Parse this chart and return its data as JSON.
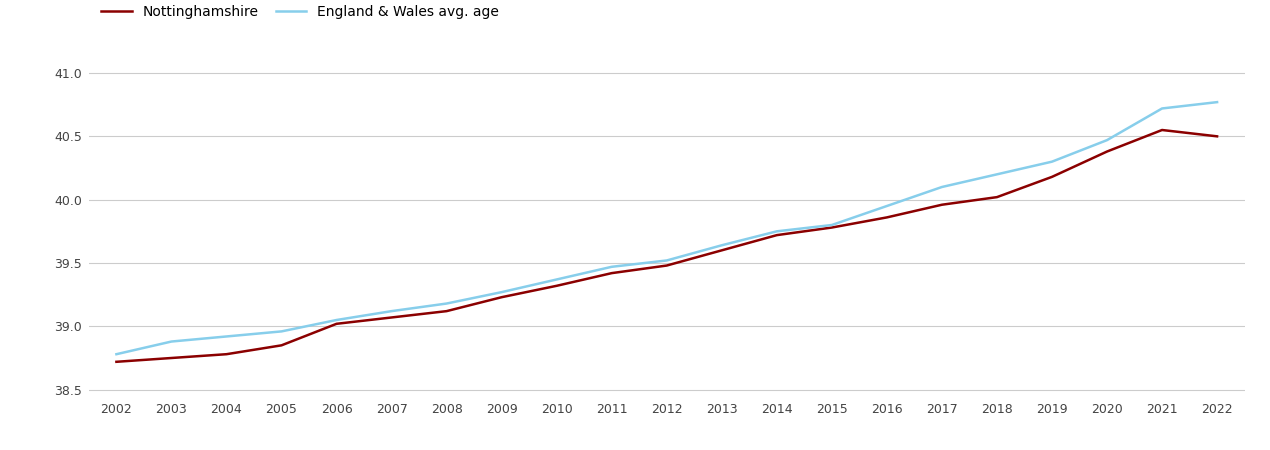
{
  "years": [
    2002,
    2003,
    2004,
    2005,
    2006,
    2007,
    2008,
    2009,
    2010,
    2011,
    2012,
    2013,
    2014,
    2015,
    2016,
    2017,
    2018,
    2019,
    2020,
    2021,
    2022
  ],
  "nottinghamshire": [
    38.72,
    38.75,
    38.78,
    38.85,
    39.02,
    39.07,
    39.12,
    39.23,
    39.32,
    39.42,
    39.48,
    39.6,
    39.72,
    39.78,
    39.86,
    39.96,
    40.02,
    40.18,
    40.38,
    40.55,
    40.5
  ],
  "england_wales": [
    38.78,
    38.88,
    38.92,
    38.96,
    39.05,
    39.12,
    39.18,
    39.27,
    39.37,
    39.47,
    39.52,
    39.64,
    39.75,
    39.8,
    39.95,
    40.1,
    40.2,
    40.3,
    40.47,
    40.72,
    40.77
  ],
  "notts_color": "#8B0000",
  "ew_color": "#87CEEB",
  "background_color": "#ffffff",
  "grid_color": "#cccccc",
  "ylim": [
    38.45,
    41.15
  ],
  "yticks": [
    38.5,
    39.0,
    39.5,
    40.0,
    40.5,
    41.0
  ],
  "legend_notts": "Nottinghamshire",
  "legend_ew": "England & Wales avg. age",
  "line_width": 1.8
}
